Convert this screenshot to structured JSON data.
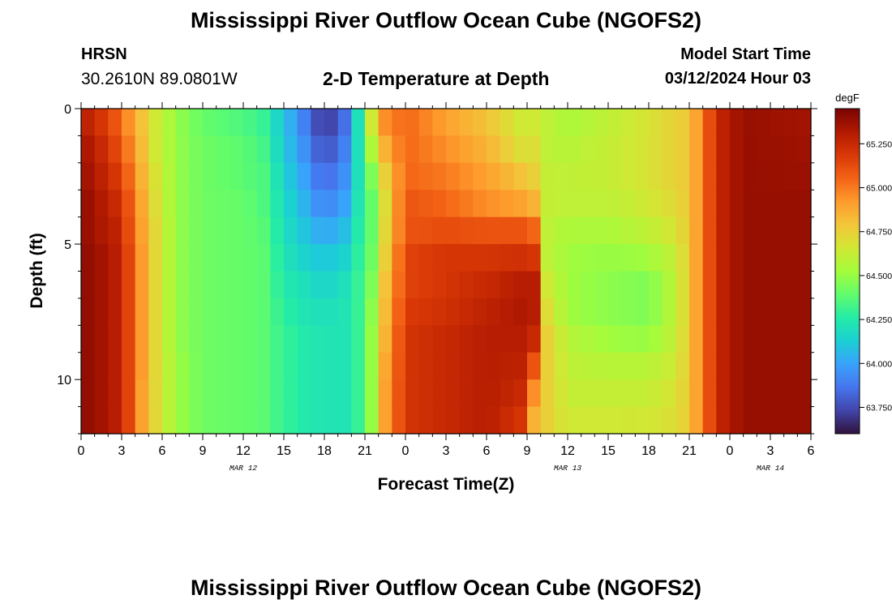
{
  "header": {
    "title": "Mississippi River Outflow Ocean Cube (NGOFS2)",
    "station": "HRSN",
    "coords": "30.2610N  89.0801W",
    "subtitle": "2-D Temperature at Depth",
    "model_start_label": "Model Start Time",
    "model_start_value": "03/12/2024 Hour 03"
  },
  "footer": {
    "title": "Mississippi River Outflow Ocean Cube (NGOFS2)"
  },
  "colors": {
    "colormap": [
      "#30123b",
      "#4145ab",
      "#4675ed",
      "#39a2fc",
      "#1bcfd4",
      "#24eca6",
      "#61fc6c",
      "#a4fc3b",
      "#d1e834",
      "#f3c63a",
      "#fe9b2d",
      "#f36315",
      "#d93806",
      "#b11901",
      "#7a0402"
    ]
  },
  "chart_data": {
    "type": "heatmap",
    "title": "2-D Temperature at Depth",
    "xlabel": "Forecast Time(Z)",
    "ylabel": "Depth (ft)",
    "colorbar_unit": "degF",
    "colorbar_ticks": [
      "63.750",
      "64.000",
      "64.250",
      "64.500",
      "64.750",
      "65.000",
      "65.250"
    ],
    "colorbar_range": [
      63.6,
      65.45
    ],
    "xlim": [
      0,
      54
    ],
    "ylim": [
      0,
      12
    ],
    "x_ticks": [
      0,
      3,
      6,
      9,
      12,
      15,
      18,
      21,
      24,
      27,
      30,
      33,
      36,
      39,
      42,
      45,
      48,
      51,
      54
    ],
    "x_tick_labels": [
      "0",
      "3",
      "6",
      "9",
      "12",
      "15",
      "18",
      "21",
      "0",
      "3",
      "6",
      "9",
      "12",
      "15",
      "18",
      "21",
      "0",
      "3",
      "6"
    ],
    "date_labels": [
      {
        "x": 12,
        "label": "MAR 12"
      },
      {
        "x": 36,
        "label": "MAR 13"
      },
      {
        "x": 51,
        "label": "MAR 14"
      }
    ],
    "y_ticks": [
      0,
      5,
      10
    ],
    "y_tick_labels": [
      "0",
      "5",
      "10"
    ],
    "profiles": [
      {
        "hour": 0,
        "temps": [
          65.3,
          65.35,
          65.38,
          65.4,
          65.4,
          65.4,
          65.4,
          65.4,
          65.4,
          65.4,
          65.4,
          65.4
        ]
      },
      {
        "hour": 1,
        "temps": [
          65.25,
          65.3,
          65.32,
          65.35,
          65.35,
          65.38,
          65.38,
          65.38,
          65.38,
          65.38,
          65.38,
          65.38
        ]
      },
      {
        "hour": 2.5,
        "temps": [
          65.1,
          65.15,
          65.2,
          65.25,
          65.28,
          65.3,
          65.3,
          65.3,
          65.3,
          65.3,
          65.3,
          65.3
        ]
      },
      {
        "hour": 3.5,
        "temps": [
          64.95,
          65.0,
          65.05,
          65.1,
          65.12,
          65.15,
          65.15,
          65.15,
          65.15,
          65.15,
          65.15,
          65.15
        ]
      },
      {
        "hour": 4.5,
        "temps": [
          64.8,
          64.82,
          64.85,
          64.88,
          64.9,
          64.92,
          64.92,
          64.92,
          64.92,
          64.92,
          64.9,
          64.9
        ]
      },
      {
        "hour": 5.5,
        "temps": [
          64.65,
          64.65,
          64.68,
          64.7,
          64.72,
          64.72,
          64.72,
          64.72,
          64.72,
          64.72,
          64.72,
          64.72
        ]
      },
      {
        "hour": 7,
        "temps": [
          64.5,
          64.5,
          64.5,
          64.5,
          64.5,
          64.5,
          64.5,
          64.5,
          64.5,
          64.52,
          64.52,
          64.52
        ]
      },
      {
        "hour": 9,
        "temps": [
          64.4,
          64.42,
          64.42,
          64.42,
          64.42,
          64.42,
          64.42,
          64.42,
          64.42,
          64.42,
          64.42,
          64.42
        ]
      },
      {
        "hour": 12,
        "temps": [
          64.35,
          64.38,
          64.38,
          64.4,
          64.4,
          64.4,
          64.4,
          64.4,
          64.4,
          64.4,
          64.4,
          64.4
        ]
      },
      {
        "hour": 13.5,
        "temps": [
          64.3,
          64.33,
          64.35,
          64.35,
          64.37,
          64.38,
          64.38,
          64.38,
          64.38,
          64.38,
          64.38,
          64.38
        ]
      },
      {
        "hour": 15,
        "temps": [
          64.1,
          64.12,
          64.15,
          64.18,
          64.2,
          64.22,
          64.25,
          64.28,
          64.3,
          64.3,
          64.3,
          64.3
        ]
      },
      {
        "hour": 16.5,
        "temps": [
          63.9,
          63.95,
          64.0,
          64.05,
          64.1,
          64.15,
          64.2,
          64.22,
          64.25,
          64.25,
          64.25,
          64.25
        ]
      },
      {
        "hour": 18,
        "temps": [
          63.68,
          63.75,
          63.82,
          63.9,
          64.0,
          64.1,
          64.15,
          64.2,
          64.22,
          64.22,
          64.22,
          64.22
        ]
      },
      {
        "hour": 19.5,
        "temps": [
          63.85,
          63.9,
          63.95,
          64.0,
          64.08,
          64.15,
          64.2,
          64.22,
          64.22,
          64.22,
          64.22,
          64.22
        ]
      },
      {
        "hour": 20.5,
        "temps": [
          64.2,
          64.2,
          64.2,
          64.22,
          64.25,
          64.28,
          64.3,
          64.3,
          64.3,
          64.3,
          64.3,
          64.3
        ]
      },
      {
        "hour": 21.5,
        "temps": [
          64.65,
          64.55,
          64.45,
          64.4,
          64.4,
          64.42,
          64.45,
          64.48,
          64.5,
          64.5,
          64.5,
          64.5
        ]
      },
      {
        "hour": 22.5,
        "temps": [
          64.95,
          64.85,
          64.75,
          64.7,
          64.72,
          64.75,
          64.8,
          64.82,
          64.85,
          64.88,
          64.9,
          64.9
        ]
      },
      {
        "hour": 24,
        "temps": [
          65.05,
          65.05,
          65.05,
          65.1,
          65.1,
          65.15,
          65.15,
          65.18,
          65.2,
          65.2,
          65.2,
          65.2
        ]
      },
      {
        "hour": 27,
        "temps": [
          64.9,
          64.95,
          65.0,
          65.05,
          65.12,
          65.2,
          65.2,
          65.22,
          65.25,
          65.25,
          65.25,
          65.25
        ]
      },
      {
        "hour": 30,
        "temps": [
          64.8,
          64.85,
          64.9,
          64.95,
          65.1,
          65.2,
          65.25,
          65.28,
          65.3,
          65.3,
          65.3,
          65.3
        ]
      },
      {
        "hour": 32.5,
        "temps": [
          64.65,
          64.7,
          64.8,
          64.9,
          65.1,
          65.22,
          65.3,
          65.32,
          65.3,
          65.28,
          65.25,
          65.2
        ]
      },
      {
        "hour": 33.5,
        "temps": [
          64.65,
          64.7,
          64.75,
          64.85,
          65.05,
          65.2,
          65.3,
          65.3,
          65.25,
          65.1,
          64.95,
          64.85
        ]
      },
      {
        "hour": 34.5,
        "temps": [
          64.6,
          64.6,
          64.62,
          64.62,
          64.6,
          64.6,
          64.65,
          64.7,
          64.75,
          64.75,
          64.75,
          64.75
        ]
      },
      {
        "hour": 36,
        "temps": [
          64.55,
          64.58,
          64.6,
          64.6,
          64.55,
          64.52,
          64.52,
          64.52,
          64.58,
          64.6,
          64.62,
          64.65
        ]
      },
      {
        "hour": 39,
        "temps": [
          64.6,
          64.62,
          64.62,
          64.6,
          64.55,
          64.5,
          64.48,
          64.48,
          64.52,
          64.58,
          64.62,
          64.65
        ]
      },
      {
        "hour": 42,
        "temps": [
          64.68,
          64.68,
          64.68,
          64.65,
          64.6,
          64.52,
          64.45,
          64.45,
          64.5,
          64.58,
          64.62,
          64.66
        ]
      },
      {
        "hour": 44,
        "temps": [
          64.75,
          64.75,
          64.75,
          64.72,
          64.68,
          64.62,
          64.6,
          64.6,
          64.62,
          64.65,
          64.68,
          64.7
        ]
      },
      {
        "hour": 45,
        "temps": [
          64.78,
          64.78,
          64.78,
          64.78,
          64.78,
          64.78,
          64.78,
          64.78,
          64.78,
          64.78,
          64.78,
          64.78
        ]
      },
      {
        "hour": 46,
        "temps": [
          65.0,
          65.0,
          65.0,
          65.0,
          65.0,
          65.0,
          65.0,
          65.0,
          65.0,
          65.0,
          65.0,
          65.0
        ]
      },
      {
        "hour": 47,
        "temps": [
          65.25,
          65.25,
          65.25,
          65.25,
          65.25,
          65.25,
          65.25,
          65.25,
          65.25,
          65.25,
          65.25,
          65.25
        ]
      },
      {
        "hour": 49,
        "temps": [
          65.38,
          65.38,
          65.38,
          65.38,
          65.38,
          65.38,
          65.38,
          65.38,
          65.38,
          65.38,
          65.38,
          65.38
        ]
      },
      {
        "hour": 54,
        "temps": [
          65.35,
          65.36,
          65.37,
          65.38,
          65.38,
          65.38,
          65.38,
          65.38,
          65.38,
          65.38,
          65.38,
          65.38
        ]
      }
    ]
  }
}
